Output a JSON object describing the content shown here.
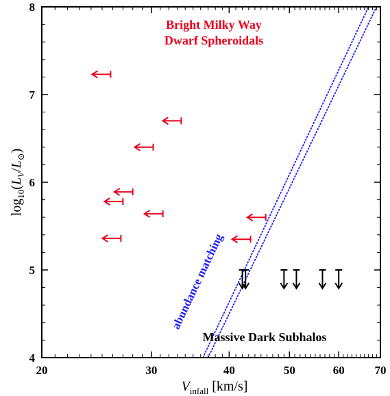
{
  "chart_data": {
    "type": "scatter",
    "xscale": "log",
    "yscale": "linear",
    "xlim": [
      20,
      70
    ],
    "ylim": [
      4,
      8
    ],
    "xticks": [
      20,
      30,
      40,
      50,
      60,
      70
    ],
    "xtick_labels": [
      "20",
      "30",
      "40",
      "50",
      "60",
      "70"
    ],
    "yticks": [
      4,
      5,
      6,
      7,
      8
    ],
    "ytick_labels": [
      "4",
      "5",
      "6",
      "7",
      "8"
    ],
    "xlabel": "V_infall [km/s]",
    "ylabel": "log10(L_V/L_⊙)",
    "grid": false,
    "annotations": {
      "dwarfs_line1": "Bright Milky Way",
      "dwarfs_line2": "Dwarf Spheroidals",
      "subhalos": "Massive Dark Subhalos",
      "abundance": "abundance matching"
    },
    "series": [
      {
        "marker": "left-arrow upper limit",
        "color": "#e8001c",
        "points": [
          {
            "x": 25.8,
            "y": 7.23
          },
          {
            "x": 33.5,
            "y": 6.7
          },
          {
            "x": 30.2,
            "y": 6.4
          },
          {
            "x": 28.0,
            "y": 5.89
          },
          {
            "x": 27.0,
            "y": 5.78
          },
          {
            "x": 31.3,
            "y": 5.64
          },
          {
            "x": 45.8,
            "y": 5.6
          },
          {
            "x": 26.8,
            "y": 5.36
          },
          {
            "x": 43.3,
            "y": 5.35
          }
        ]
      },
      {
        "marker": "down-arrow upper limit",
        "color": "#000000",
        "points": [
          {
            "x": 42.0,
            "y": 5.0
          },
          {
            "x": 42.5,
            "y": 5.0
          },
          {
            "x": 49.0,
            "y": 5.0
          },
          {
            "x": 51.3,
            "y": 5.0
          },
          {
            "x": 56.5,
            "y": 5.0
          },
          {
            "x": 60.0,
            "y": 5.0
          }
        ]
      }
    ],
    "abundance_matching_line": {
      "style": "dotted",
      "color": "#1a1aff",
      "points": [
        [
          37.0,
          4.0
        ],
        [
          69.0,
          8.0
        ]
      ]
    },
    "abundance_matching_line_b": {
      "style": "dotted",
      "color": "#1a1aff",
      "points": [
        [
          36.3,
          4.0
        ],
        [
          67.0,
          8.0
        ]
      ]
    }
  }
}
